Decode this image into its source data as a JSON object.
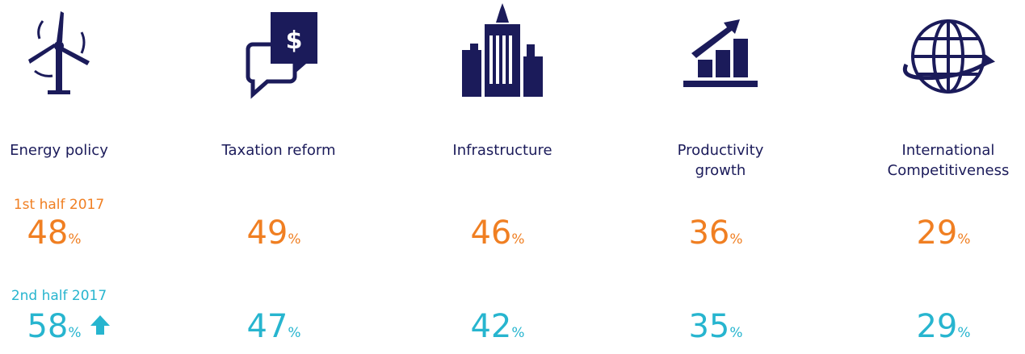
{
  "periods": [
    "1st half 2017",
    "2nd half 2017"
  ],
  "unit": "%",
  "items": [
    {
      "label": [
        "Energy policy"
      ],
      "values": [
        48,
        58
      ]
    },
    {
      "label": [
        "Taxation reform"
      ],
      "values": [
        49,
        47
      ]
    },
    {
      "label": [
        "Infrastructure"
      ],
      "values": [
        46,
        42
      ]
    },
    {
      "label": [
        "Productivity",
        "growth"
      ],
      "values": [
        36,
        35
      ]
    },
    {
      "label": [
        "International",
        "Competitiveness"
      ],
      "values": [
        29,
        29
      ]
    }
  ]
}
